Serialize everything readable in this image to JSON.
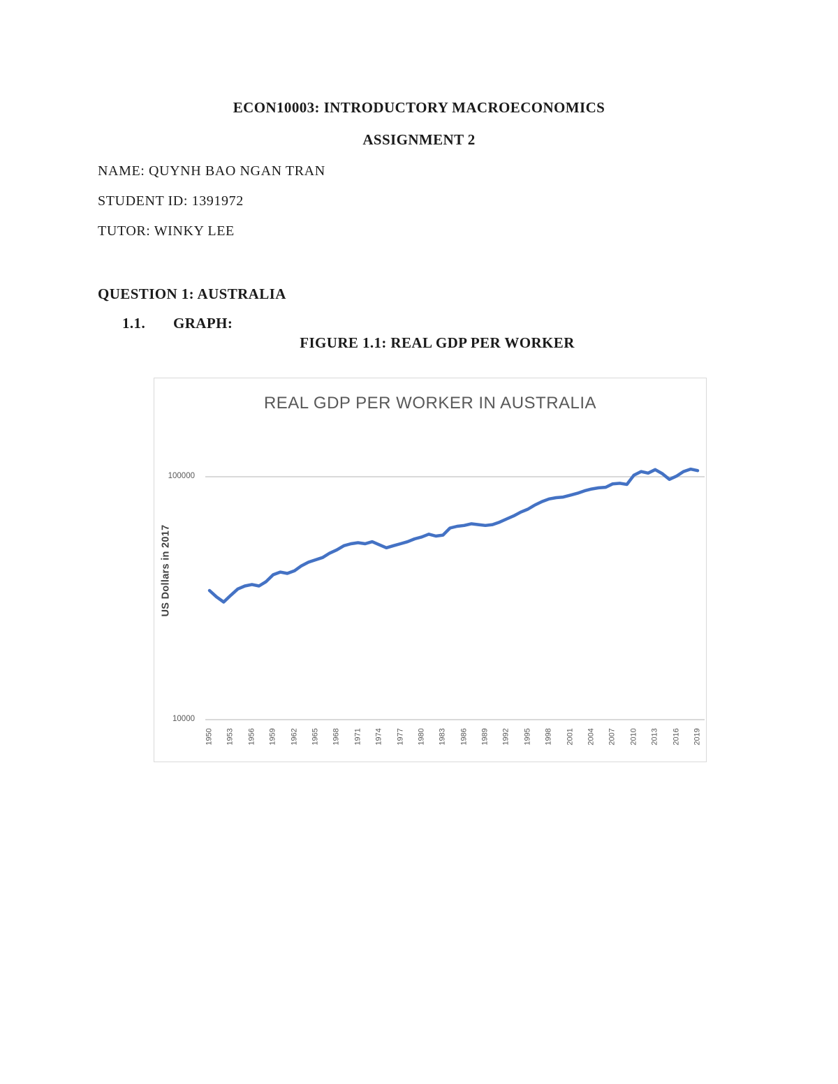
{
  "document": {
    "course_title": "ECON10003: INTRODUCTORY MACROECONOMICS",
    "assignment_title": "ASSIGNMENT 2",
    "name_line": "NAME: QUYNH BAO NGAN TRAN",
    "student_id_line": "STUDENT ID: 1391972",
    "tutor_line": "TUTOR: WINKY LEE",
    "question_heading": "QUESTION 1: AUSTRALIA",
    "list_number": "1.1.",
    "list_label": "GRAPH:",
    "figure_caption": "FIGURE 1.1: REAL GDP PER WORKER"
  },
  "chart_data": {
    "type": "line",
    "title": "REAL GDP PER WORKER IN AUSTRALIA",
    "xlabel": "",
    "ylabel": "US Dollars in 2017",
    "y_scale": "log10",
    "ylim": [
      10000,
      100000
    ],
    "ytick_labels": [
      "100000",
      "10000"
    ],
    "grid": "horizontal-only",
    "legend": "none",
    "line_color": "#4472C4",
    "x_tick_labels": [
      "1950",
      "1953",
      "1956",
      "1959",
      "1962",
      "1965",
      "1968",
      "1971",
      "1974",
      "1977",
      "1980",
      "1983",
      "1986",
      "1989",
      "1992",
      "1995",
      "1998",
      "2001",
      "2004",
      "2007",
      "2010",
      "2013",
      "2016",
      "2019"
    ],
    "x_range": [
      1950,
      2019
    ],
    "series": [
      {
        "name": "Real GDP per worker in Australia",
        "x": [
          1950,
          1951,
          1952,
          1953,
          1954,
          1955,
          1956,
          1957,
          1958,
          1959,
          1960,
          1961,
          1962,
          1963,
          1964,
          1965,
          1966,
          1967,
          1968,
          1969,
          1970,
          1971,
          1972,
          1973,
          1974,
          1975,
          1976,
          1977,
          1978,
          1979,
          1980,
          1981,
          1982,
          1983,
          1984,
          1985,
          1986,
          1987,
          1988,
          1989,
          1990,
          1991,
          1992,
          1993,
          1994,
          1995,
          1996,
          1997,
          1998,
          1999,
          2000,
          2001,
          2002,
          2003,
          2004,
          2005,
          2006,
          2007,
          2008,
          2009,
          2010,
          2011,
          2012,
          2013,
          2014,
          2015,
          2016,
          2017,
          2018,
          2019
        ],
        "values": [
          34000,
          32000,
          30500,
          32500,
          34500,
          35500,
          36000,
          35500,
          37000,
          39500,
          40500,
          40000,
          41000,
          43000,
          44500,
          45500,
          46500,
          48500,
          50000,
          52000,
          53000,
          53500,
          53000,
          54000,
          52500,
          51000,
          52000,
          53000,
          54000,
          55500,
          56500,
          58000,
          57000,
          57500,
          61500,
          62500,
          63000,
          64000,
          63500,
          63000,
          63500,
          65000,
          67000,
          69000,
          71500,
          73500,
          76500,
          79000,
          81000,
          82000,
          82500,
          84000,
          85500,
          87500,
          89000,
          90000,
          90500,
          93500,
          94000,
          93000,
          101500,
          105000,
          103500,
          107000,
          103000,
          97500,
          100500,
          105000,
          107500,
          106000
        ]
      }
    ]
  }
}
